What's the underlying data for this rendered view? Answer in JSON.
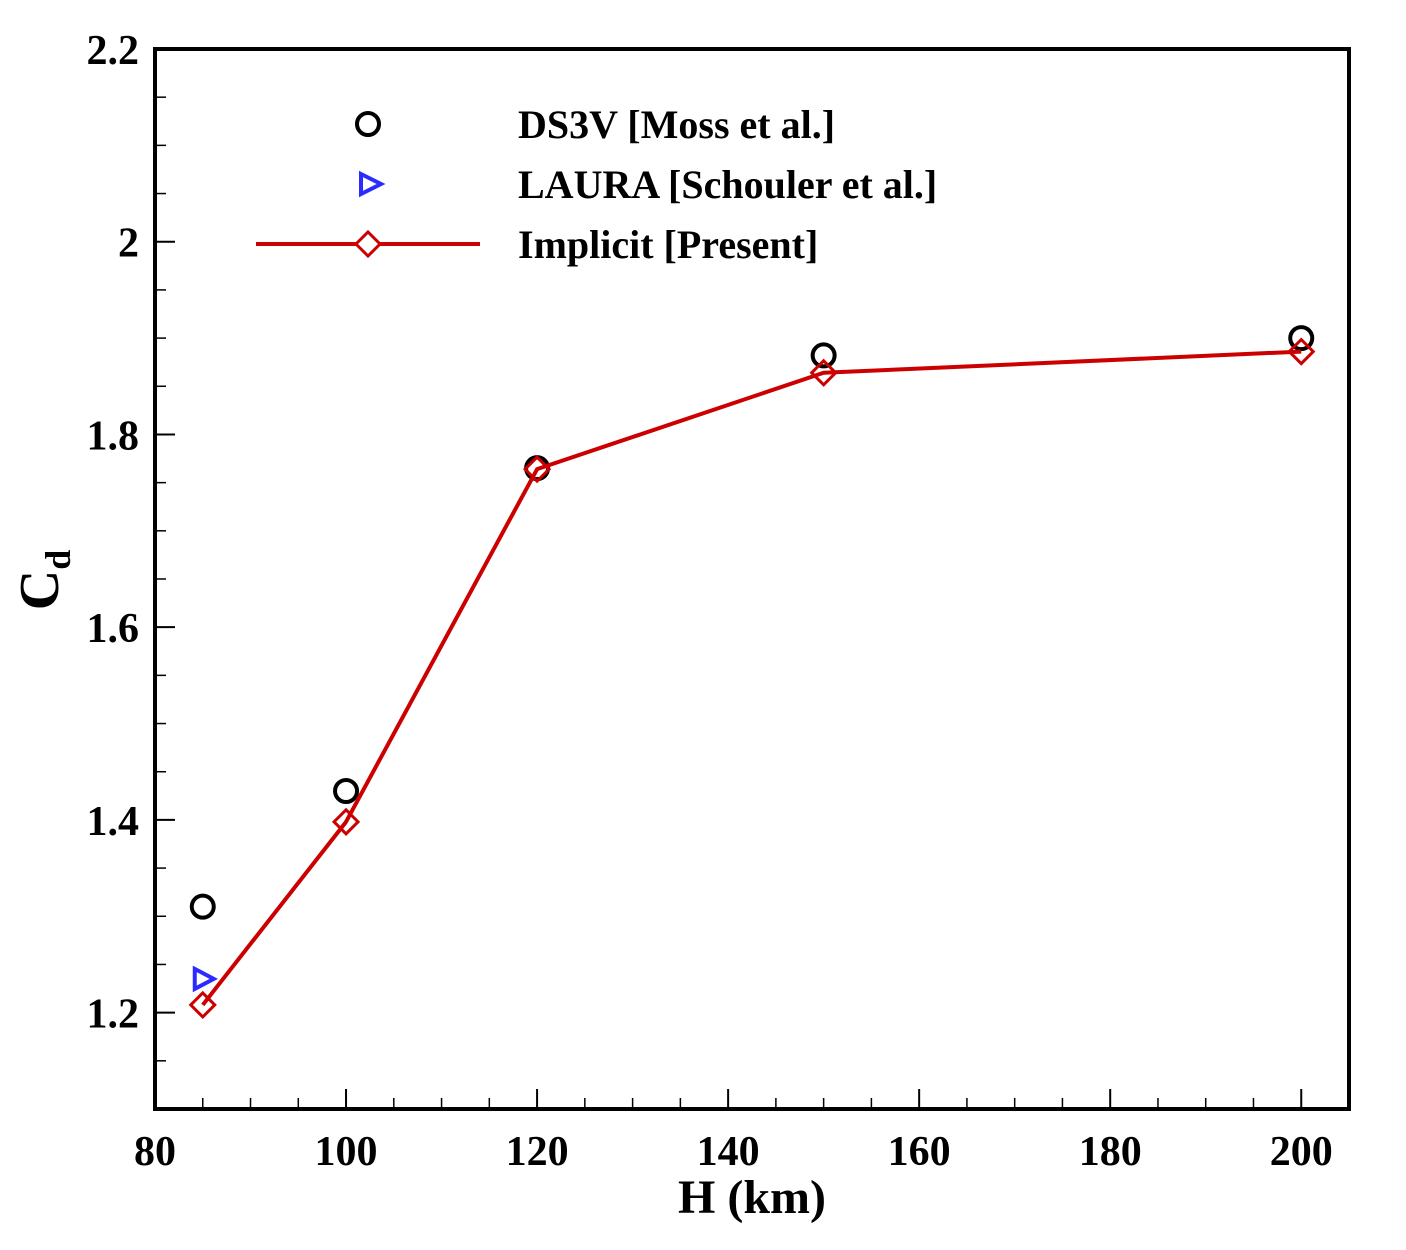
{
  "chart_data": {
    "type": "line",
    "title": "",
    "xlabel": "H (km)",
    "ylabel_main": "C",
    "ylabel_sub": "d",
    "xlim": [
      80,
      205
    ],
    "ylim": [
      1.1,
      2.2
    ],
    "x_ticks": [
      80,
      100,
      120,
      140,
      160,
      180,
      200
    ],
    "x_tick_labels": [
      "80",
      "100",
      "120",
      "140",
      "160",
      "180",
      "200"
    ],
    "y_ticks": [
      1.2,
      1.4,
      1.6,
      1.8,
      2.0,
      2.2
    ],
    "y_tick_labels": [
      "1.2",
      "1.4",
      "1.6",
      "1.8",
      "2",
      "2.2"
    ],
    "x_minor_step": 5,
    "y_minor_step": 0.05,
    "grid": false,
    "legend_position": "top-left",
    "series": [
      {
        "name": "DS3V [Moss et al.]",
        "marker": "circle",
        "line": false,
        "color": "#000000",
        "x": [
          85,
          100,
          120,
          150,
          200
        ],
        "values": [
          1.31,
          1.43,
          1.765,
          1.882,
          1.9
        ]
      },
      {
        "name": "LAURA [Schouler et al.]",
        "marker": "triangle-right",
        "line": false,
        "color": "#2b2bff",
        "x": [
          85
        ],
        "values": [
          1.235
        ]
      },
      {
        "name": "Implicit [Present]",
        "marker": "diamond",
        "line": true,
        "color": "#cc0000",
        "x": [
          85,
          100,
          120,
          150,
          200
        ],
        "values": [
          1.208,
          1.398,
          1.764,
          1.864,
          1.886
        ]
      }
    ]
  }
}
